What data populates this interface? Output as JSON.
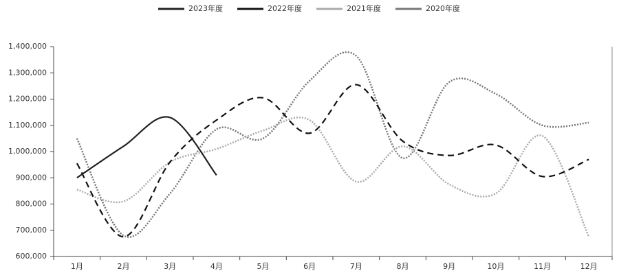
{
  "chart_data": {
    "type": "line",
    "categories": [
      "1月",
      "2月",
      "3月",
      "4月",
      "5月",
      "6月",
      "7月",
      "8月",
      "9月",
      "10月",
      "11月",
      "12月"
    ],
    "series": [
      {
        "name": "2023年度",
        "color": "#222222",
        "style": "solid",
        "values": [
          900000,
          1020000,
          1130000,
          910000,
          null,
          null,
          null,
          null,
          null,
          null,
          null,
          null
        ]
      },
      {
        "name": "2022年度",
        "color": "#111111",
        "style": "dashed",
        "values": [
          955000,
          675000,
          960000,
          1120000,
          1205000,
          1070000,
          1255000,
          1040000,
          985000,
          1025000,
          905000,
          970000
        ]
      },
      {
        "name": "2021年度",
        "color": "#aaaaaa",
        "style": "dotted",
        "values": [
          855000,
          810000,
          960000,
          1010000,
          1080000,
          1120000,
          885000,
          1020000,
          875000,
          840000,
          1060000,
          675000
        ]
      },
      {
        "name": "2020年度",
        "color": "#777777",
        "style": "dotted",
        "values": [
          1050000,
          680000,
          840000,
          1085000,
          1050000,
          1270000,
          1365000,
          975000,
          1265000,
          1220000,
          1100000,
          1110000
        ]
      }
    ],
    "ylim": [
      600000,
      1400000
    ],
    "yticks": [
      {
        "value": 600000,
        "label": "600,000"
      },
      {
        "value": 700000,
        "label": "700,000"
      },
      {
        "value": 800000,
        "label": "800,000"
      },
      {
        "value": 900000,
        "label": "900,000"
      },
      {
        "value": 1000000,
        "label": "1,000,000"
      },
      {
        "value": 1100000,
        "label": "1,100,000"
      },
      {
        "value": 1200000,
        "label": "1,200,000"
      },
      {
        "value": 1300000,
        "label": "1,300,000"
      },
      {
        "value": 1400000,
        "label": "1,400,000"
      }
    ],
    "grid": false,
    "legend": "top"
  }
}
